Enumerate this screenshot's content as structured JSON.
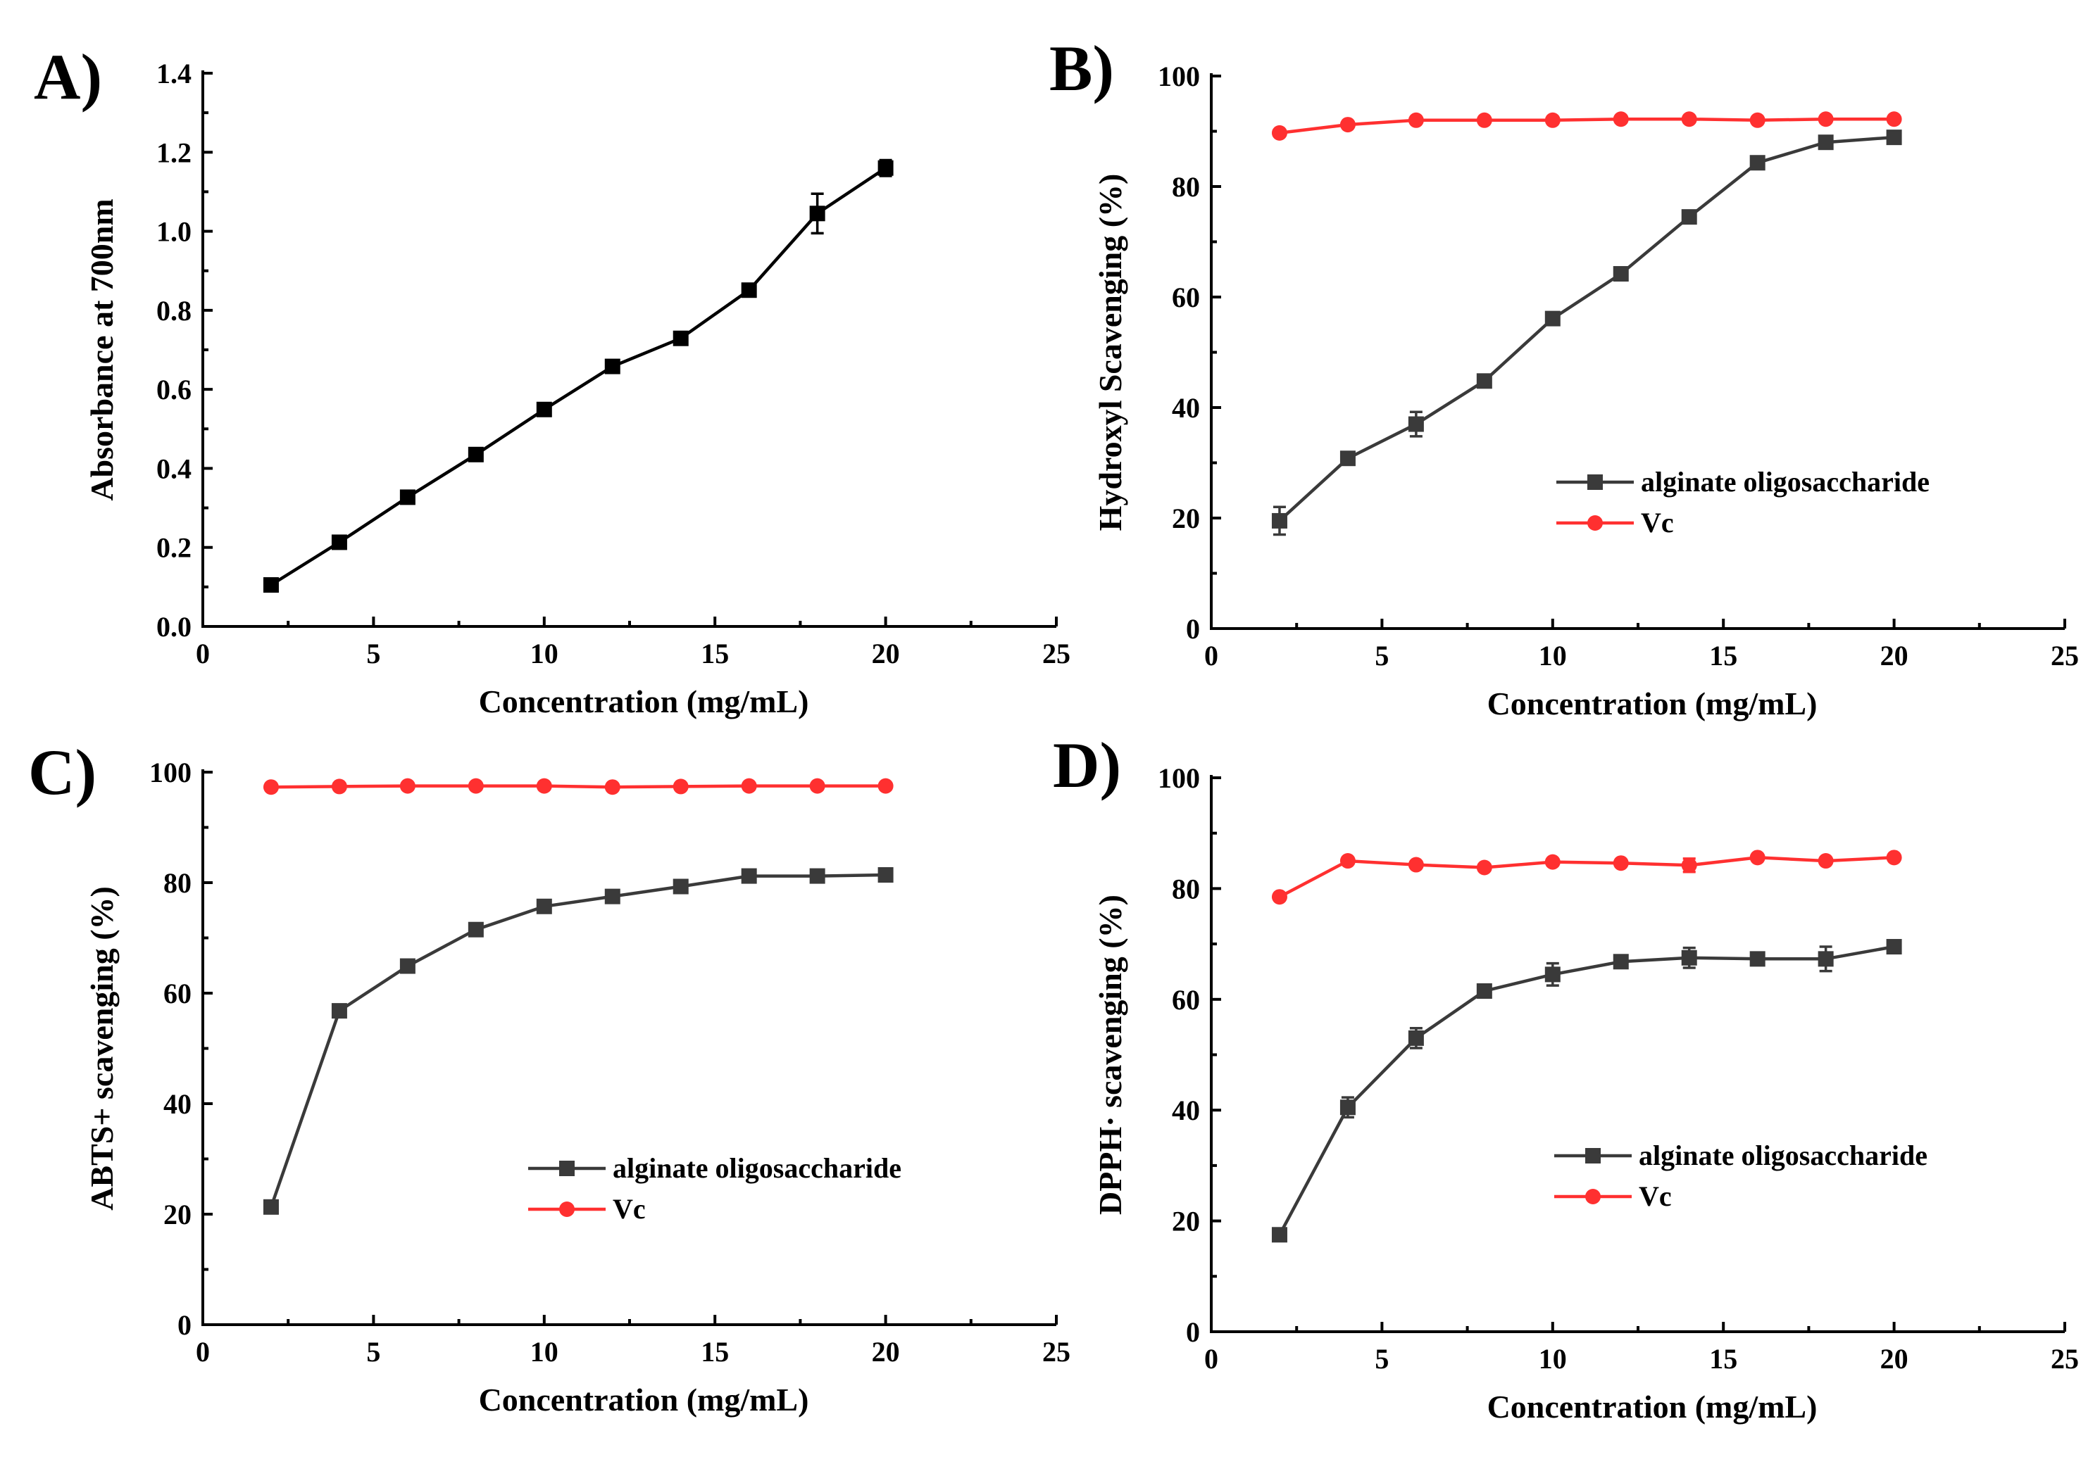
{
  "chart_data": [
    {
      "id": "A",
      "panel_label": "A)",
      "type": "line",
      "title": "",
      "xlabel": "Concentration (mg/mL)",
      "ylabel": "Absorbance at 700nm",
      "xlim": [
        0,
        25
      ],
      "ylim": [
        0,
        1.4
      ],
      "xticks": [
        0,
        5,
        10,
        15,
        20,
        25
      ],
      "xtick_labels": [
        "0",
        "5",
        "10",
        "15",
        "20",
        "25"
      ],
      "yticks": [
        0,
        0.2,
        0.4,
        0.6,
        0.8,
        1.0,
        1.2,
        1.4
      ],
      "ytick_labels": [
        "0.0",
        "0.2",
        "0.4",
        "0.6",
        "0.8",
        "1.0",
        "1.2",
        "1.4"
      ],
      "legend": null,
      "series": [
        {
          "name": "Absorbance",
          "color": "#000000",
          "marker": "square",
          "x": [
            2,
            4,
            6,
            8,
            10,
            12,
            14,
            16,
            18,
            20
          ],
          "y": [
            0.105,
            0.213,
            0.327,
            0.435,
            0.549,
            0.658,
            0.729,
            0.851,
            1.045,
            1.16
          ],
          "err": [
            0.008,
            0.008,
            0.008,
            0.008,
            0.008,
            0.01,
            0.01,
            0.012,
            0.05,
            0.02
          ]
        }
      ]
    },
    {
      "id": "B",
      "panel_label": "B)",
      "type": "line",
      "title": "",
      "xlabel": "Concentration (mg/mL)",
      "ylabel": "Hydroxyl Scavenging (%)",
      "xlim": [
        0,
        25
      ],
      "ylim": [
        0,
        100
      ],
      "xticks": [
        0,
        5,
        10,
        15,
        20,
        25
      ],
      "xtick_labels": [
        "0",
        "5",
        "10",
        "15",
        "20",
        "25"
      ],
      "yticks": [
        0,
        20,
        40,
        60,
        80,
        100
      ],
      "ytick_labels": [
        "0",
        "20",
        "40",
        "60",
        "80",
        "100"
      ],
      "legend": "center-right",
      "series": [
        {
          "name": "alginate oligosaccharide",
          "color": "#3a3a3a",
          "marker": "square",
          "x": [
            2,
            4,
            6,
            8,
            10,
            12,
            14,
            16,
            18,
            20
          ],
          "y": [
            19.5,
            30.8,
            37.0,
            44.8,
            56.1,
            64.2,
            74.5,
            84.3,
            88.0,
            88.9
          ],
          "err": [
            2.5,
            1.0,
            2.2,
            1.0,
            1.0,
            1.0,
            1.0,
            1.0,
            1.0,
            1.0
          ]
        },
        {
          "name": "Vc",
          "color": "#ff3030",
          "marker": "circle",
          "x": [
            2,
            4,
            6,
            8,
            10,
            12,
            14,
            16,
            18,
            20
          ],
          "y": [
            89.7,
            91.2,
            92.0,
            92.0,
            92.0,
            92.2,
            92.2,
            92.0,
            92.2,
            92.2
          ],
          "err": [
            0,
            0,
            0,
            0,
            0,
            0,
            0,
            0,
            0,
            0
          ]
        }
      ]
    },
    {
      "id": "C",
      "panel_label": "C)",
      "type": "line",
      "title": "",
      "xlabel": "Concentration (mg/mL)",
      "ylabel": "ABTS+ scavenging (%)",
      "xlim": [
        0,
        25
      ],
      "ylim": [
        0,
        100
      ],
      "xticks": [
        0,
        5,
        10,
        15,
        20,
        25
      ],
      "xtick_labels": [
        "0",
        "5",
        "10",
        "15",
        "20",
        "25"
      ],
      "yticks": [
        0,
        20,
        40,
        60,
        80,
        100
      ],
      "ytick_labels": [
        "0",
        "20",
        "40",
        "60",
        "80",
        "100"
      ],
      "legend": "center-right",
      "series": [
        {
          "name": "alginate oligosaccharide",
          "color": "#3a3a3a",
          "marker": "square",
          "x": [
            2,
            4,
            6,
            8,
            10,
            12,
            14,
            16,
            18,
            20
          ],
          "y": [
            21.3,
            56.8,
            64.9,
            71.5,
            75.7,
            77.5,
            79.3,
            81.2,
            81.2,
            81.4
          ],
          "err": [
            0.5,
            0.6,
            0.6,
            0.5,
            0.5,
            0.5,
            0.5,
            0.5,
            0.5,
            0.5
          ]
        },
        {
          "name": "Vc",
          "color": "#ff3030",
          "marker": "circle",
          "x": [
            2,
            4,
            6,
            8,
            10,
            12,
            14,
            16,
            18,
            20
          ],
          "y": [
            97.3,
            97.4,
            97.5,
            97.5,
            97.5,
            97.3,
            97.4,
            97.5,
            97.5,
            97.5
          ],
          "err": [
            0,
            0,
            0,
            0,
            0,
            0,
            0,
            0,
            0,
            0
          ]
        }
      ]
    },
    {
      "id": "D",
      "panel_label": "D)",
      "type": "line",
      "title": "",
      "xlabel": "Concentration (mg/mL)",
      "ylabel": "DPPH· scavenging (%)",
      "xlim": [
        0,
        25
      ],
      "ylim": [
        0,
        100
      ],
      "xticks": [
        0,
        5,
        10,
        15,
        20,
        25
      ],
      "xtick_labels": [
        "0",
        "5",
        "10",
        "15",
        "20",
        "25"
      ],
      "yticks": [
        0,
        20,
        40,
        60,
        80,
        100
      ],
      "ytick_labels": [
        "0",
        "20",
        "40",
        "60",
        "80",
        "100"
      ],
      "legend": "center-right",
      "series": [
        {
          "name": "alginate oligosaccharide",
          "color": "#3a3a3a",
          "marker": "square",
          "x": [
            2,
            4,
            6,
            8,
            10,
            12,
            14,
            16,
            18,
            20
          ],
          "y": [
            17.5,
            40.5,
            53.0,
            61.5,
            64.5,
            66.8,
            67.5,
            67.3,
            67.3,
            69.5
          ],
          "err": [
            0.8,
            1.8,
            1.8,
            0.8,
            2.0,
            0.8,
            1.8,
            0.8,
            2.2,
            1.0
          ]
        },
        {
          "name": "Vc",
          "color": "#ff3030",
          "marker": "circle",
          "x": [
            2,
            4,
            6,
            8,
            10,
            12,
            14,
            16,
            18,
            20
          ],
          "y": [
            78.5,
            85.0,
            84.3,
            83.8,
            84.8,
            84.6,
            84.2,
            85.6,
            85.0,
            85.6
          ],
          "err": [
            0,
            0,
            0,
            0,
            0,
            0,
            1.2,
            0,
            0,
            0
          ]
        }
      ]
    }
  ]
}
